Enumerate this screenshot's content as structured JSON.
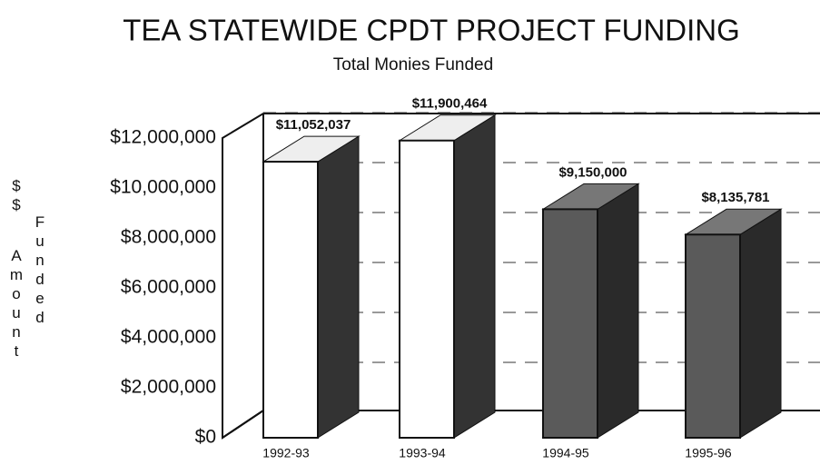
{
  "chart_data": {
    "type": "bar3d",
    "title": "TEA STATEWIDE CPDT PROJECT FUNDING",
    "subtitle": "Total Monies Funded",
    "ylabel": [
      "$$",
      "Amount",
      "Funded"
    ],
    "categories": [
      "1992-93",
      "1993-94",
      "1994-95",
      "1995-96"
    ],
    "values": [
      11052037,
      11900464,
      9150000,
      8135781
    ],
    "value_labels": [
      "$11,052,037",
      "$11,900,464",
      "$9,150,000",
      "$8,135,781"
    ],
    "colors": [
      "#ffffff",
      "#ffffff",
      "#5a5a5a",
      "#5a5a5a"
    ],
    "ylim": [
      0,
      12000000
    ],
    "yticks": [
      {
        "value": 0,
        "label": "$0"
      },
      {
        "value": 2000000,
        "label": "$2,000,000"
      },
      {
        "value": 4000000,
        "label": "$4,000,000"
      },
      {
        "value": 6000000,
        "label": "$6,000,000"
      },
      {
        "value": 8000000,
        "label": "$8,000,000"
      },
      {
        "value": 10000000,
        "label": "$10,000,000"
      },
      {
        "value": 12000000,
        "label": "$12,000,000"
      }
    ],
    "grid": true
  }
}
